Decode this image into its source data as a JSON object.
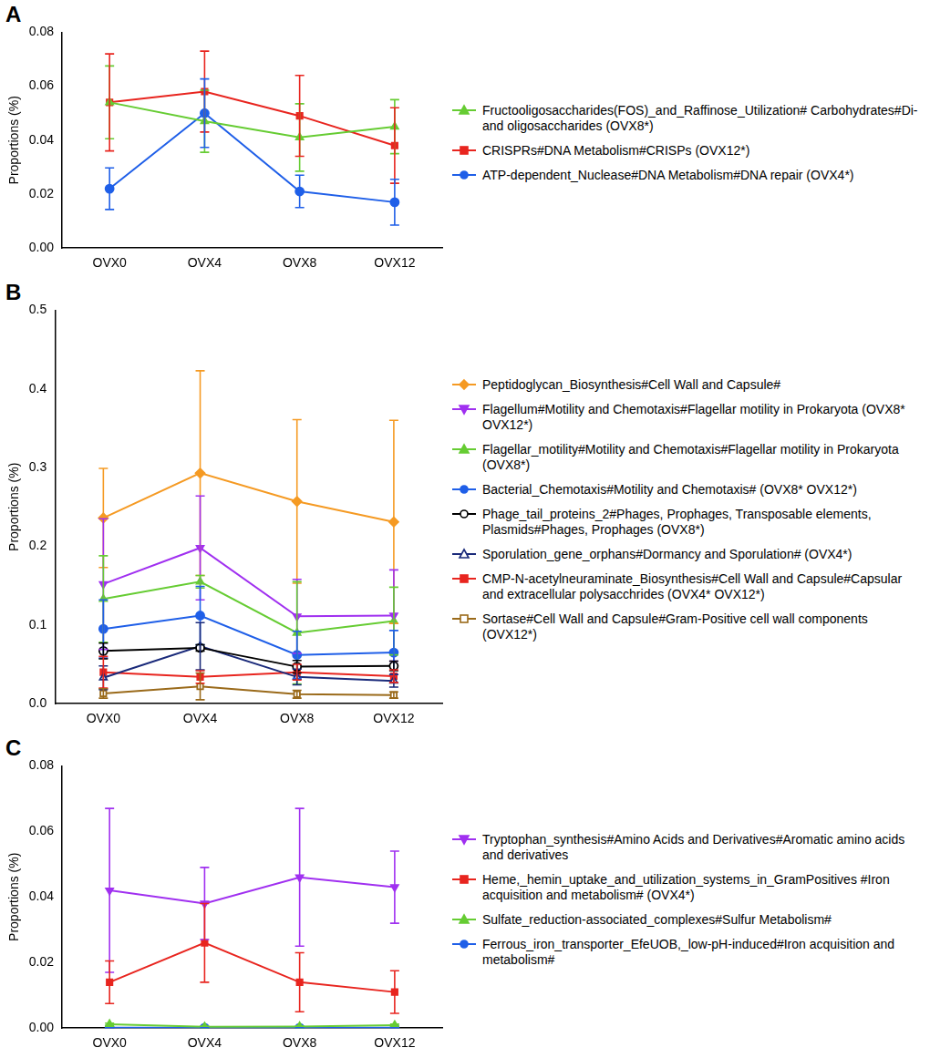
{
  "chart_data": [
    {
      "type": "line",
      "title": "A",
      "y_label": "Proportions (%)",
      "legend": "right",
      "grid": false,
      "categories": [
        "OVX0",
        "OVX4",
        "OVX8",
        "OVX12"
      ],
      "ylim": [
        0,
        0.08
      ],
      "yticks": [
        {
          "value": 0,
          "label": "0.00"
        },
        {
          "value": 0.02,
          "label": "0.02"
        },
        {
          "value": 0.04,
          "label": "0.04"
        },
        {
          "value": 0.06,
          "label": "0.06"
        },
        {
          "value": 0.08,
          "label": "0.08"
        }
      ],
      "series": [
        {
          "name": "Fructooligosaccharides(FOS)_and_Raffinose_Utilization# Carbohydrates#Di- and oligosaccharides (OVX8*)",
          "color": "#66cc33",
          "marker": "triangle",
          "values": [
            0.054,
            0.047,
            0.041,
            0.045
          ],
          "errors": [
            0.0135,
            0.0115,
            0.0125,
            0.01
          ]
        },
        {
          "name": "CRISPRs#DNA Metabolism#CRISPs (OVX12*)",
          "color": "#e8251f",
          "marker": "square",
          "values": [
            0.054,
            0.058,
            0.049,
            0.038
          ],
          "errors": [
            0.018,
            0.015,
            0.015,
            0.014
          ]
        },
        {
          "name": "ATP-dependent_Nuclease#DNA Metabolism#DNA repair (OVX4*)",
          "color": "#1f5fe8",
          "marker": "circle",
          "values": [
            0.022,
            0.05,
            0.021,
            0.017
          ],
          "errors": [
            0.0077,
            0.0127,
            0.006,
            0.0085
          ]
        }
      ]
    },
    {
      "type": "line",
      "title": "B",
      "y_label": "Proportions (%)",
      "legend": "right",
      "grid": false,
      "categories": [
        "OVX0",
        "OVX4",
        "OVX8",
        "OVX12"
      ],
      "ylim": [
        0,
        0.5
      ],
      "yticks": [
        {
          "value": 0,
          "label": "0.0"
        },
        0.1,
        0.2,
        0.3,
        0.4,
        0.5
      ],
      "series": [
        {
          "name": "Peptidoglycan_Biosynthesis#Cell Wall and Capsule#",
          "color": "#f59a23",
          "marker": "diamond",
          "values": [
            0.236,
            0.293,
            0.257,
            0.231
          ],
          "errors": [
            0.063,
            0.13,
            0.104,
            0.129
          ]
        },
        {
          "name": "Flagellum#Motility and Chemotaxis#Flagellar motility in Prokaryota (OVX8* OVX12*)",
          "color": "#a030f0",
          "marker": "triangle-down",
          "values": [
            0.152,
            0.198,
            0.111,
            0.112
          ],
          "errors": [
            0.083,
            0.066,
            0.047,
            0.058
          ]
        },
        {
          "name": "Flagellar_motility#Motility and Chemotaxis#Flagellar motility in Prokaryota (OVX8*)",
          "color": "#66cc33",
          "marker": "triangle",
          "values": [
            0.133,
            0.155,
            0.09,
            0.105
          ],
          "errors": [
            0.055,
            0.008,
            0.065,
            0.043
          ]
        },
        {
          "name": "Bacterial_Chemotaxis#Motility and Chemotaxis# (OVX8* OVX12*)",
          "color": "#1f5fe8",
          "marker": "circle",
          "values": [
            0.095,
            0.112,
            0.062,
            0.065
          ],
          "errors": [
            0.037,
            0.037,
            0.03,
            0.028
          ]
        },
        {
          "name": "Phage_tail_proteins_2#Phages, Prophages, Transposable elements, Plasmids#Phages, Prophages (OVX8*)",
          "color": "#000000",
          "marker": "open-circle",
          "values": [
            0.067,
            0.071,
            0.047,
            0.048
          ],
          "errors": [
            0.01,
            0.004,
            0.008,
            0.006
          ]
        },
        {
          "name": "Sporulation_gene_orphans#Dormancy and Sporulation# (OVX4*)",
          "color": "#1a2a7a",
          "marker": "open-triangle",
          "values": [
            0.033,
            0.073,
            0.034,
            0.029
          ],
          "errors": [
            0.015,
            0.03,
            0.01,
            0.008
          ]
        },
        {
          "name": "CMP-N-acetylneuraminate_Biosynthesis#Cell Wall and Capsule#Capsular and extracellular polysacchrides (OVX4* OVX12*)",
          "color": "#e8251f",
          "marker": "square",
          "values": [
            0.04,
            0.034,
            0.04,
            0.035
          ],
          "errors": [
            0.02,
            0.008,
            0.01,
            0.008
          ]
        },
        {
          "name": "Sortase#Cell Wall and Capsule#Gram-Positive cell wall components (OVX12*)",
          "color": "#9a6a1a",
          "marker": "open-square",
          "values": [
            0.013,
            0.022,
            0.012,
            0.011
          ],
          "errors": [
            0.006,
            0.017,
            0.005,
            0.004
          ]
        }
      ]
    },
    {
      "type": "line",
      "title": "C",
      "y_label": "Proportions (%)",
      "legend": "right",
      "grid": false,
      "categories": [
        "OVX0",
        "OVX4",
        "OVX8",
        "OVX12"
      ],
      "ylim": [
        0,
        0.08
      ],
      "yticks": [
        {
          "value": 0,
          "label": "0.00"
        },
        {
          "value": 0.02,
          "label": "0.02"
        },
        {
          "value": 0.04,
          "label": "0.04"
        },
        {
          "value": 0.06,
          "label": "0.06"
        },
        {
          "value": 0.08,
          "label": "0.08"
        }
      ],
      "series": [
        {
          "name": "Tryptophan_synthesis#Amino Acids and Derivatives#Aromatic amino acids and derivatives",
          "color": "#a030f0",
          "marker": "triangle-down",
          "values": [
            0.042,
            0.038,
            0.046,
            0.043
          ],
          "errors": [
            0.025,
            0.011,
            0.021,
            0.011
          ]
        },
        {
          "name": "Heme,_hemin_uptake_and_utilization_systems_in_GramPositives #Iron acquisition and metabolism# (OVX4*)",
          "color": "#e8251f",
          "marker": "square",
          "values": [
            0.014,
            0.026,
            0.014,
            0.011
          ],
          "errors": [
            0.0065,
            0.012,
            0.009,
            0.0065
          ]
        },
        {
          "name": "Sulfate_reduction-associated_complexes#Sulfur Metabolism#",
          "color": "#66cc33",
          "marker": "triangle",
          "values": [
            0.0012,
            0.0004,
            0.0005,
            0.0009
          ],
          "errors": [
            0.0003,
            0.0002,
            0.0002,
            0.0003
          ]
        },
        {
          "name": "Ferrous_iron_transporter_EfeUOB,_low-pH-induced#Iron acquisition and metabolism#",
          "color": "#1f5fe8",
          "marker": "circle",
          "values": [
            0.0001,
            0.0001,
            0.0001,
            0.0001
          ],
          "errors": [
            0,
            0,
            0,
            0
          ]
        }
      ]
    }
  ]
}
